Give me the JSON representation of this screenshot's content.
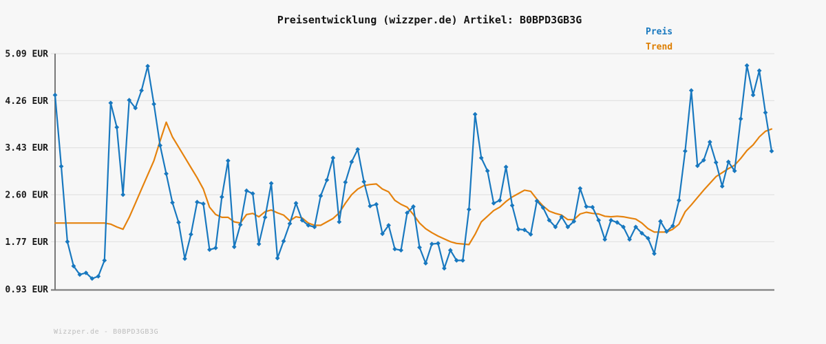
{
  "title": "Preisentwicklung (wizzper.de) Artikel: B0BPD3GB3G",
  "watermark": "Wizzper.de - B0BPD3GB3G",
  "legend": {
    "items": [
      {
        "label": "Preis",
        "color": "#1878bf"
      },
      {
        "label": "Trend",
        "color": "#dd7e00"
      }
    ]
  },
  "colors": {
    "background": "#f7f7f7",
    "grid": "#e3e3e3",
    "axis": "#787878",
    "price_line": "#1878bf",
    "trend_line": "#e5820d",
    "tick_text": "#1a1a1a",
    "watermark_text": "#bdbdbd"
  },
  "chart_data": {
    "type": "line",
    "title": "Preisentwicklung (wizzper.de) Artikel: B0BPD3GB3G",
    "xlabel": "",
    "ylabel": "EUR",
    "ylim": [
      0.93,
      5.09
    ],
    "grid": "horizontal",
    "legend_position": "top-right",
    "x_tick_labels": [],
    "yticks": [
      {
        "value": 5.09,
        "label": "5.09 EUR"
      },
      {
        "value": 4.26,
        "label": "4.26 EUR"
      },
      {
        "value": 3.43,
        "label": "3.43 EUR"
      },
      {
        "value": 2.6,
        "label": "2.60 EUR"
      },
      {
        "value": 1.77,
        "label": "1.77 EUR"
      },
      {
        "value": 0.93,
        "label": "0.93 EUR"
      }
    ],
    "series": [
      {
        "name": "Preis",
        "color": "#1878bf",
        "marker": "diamond",
        "values": [
          4.36,
          3.1,
          1.77,
          1.34,
          1.19,
          1.22,
          1.12,
          1.16,
          1.44,
          4.22,
          3.79,
          2.6,
          4.27,
          4.13,
          4.44,
          4.87,
          4.2,
          3.47,
          2.97,
          2.46,
          2.11,
          1.47,
          1.9,
          2.47,
          2.44,
          1.63,
          1.66,
          2.56,
          3.2,
          1.68,
          2.07,
          2.67,
          2.62,
          1.73,
          2.2,
          2.8,
          1.48,
          1.78,
          2.09,
          2.45,
          2.15,
          2.06,
          2.03,
          2.58,
          2.86,
          3.25,
          2.12,
          2.82,
          3.18,
          3.4,
          2.83,
          2.4,
          2.43,
          1.91,
          2.06,
          1.64,
          1.62,
          2.28,
          2.39,
          1.67,
          1.39,
          1.73,
          1.74,
          1.3,
          1.62,
          1.44,
          1.44,
          2.34,
          4.02,
          3.25,
          3.02,
          2.45,
          2.5,
          3.09,
          2.41,
          1.99,
          1.98,
          1.9,
          2.49,
          2.37,
          2.15,
          2.03,
          2.21,
          2.03,
          2.13,
          2.71,
          2.39,
          2.38,
          2.15,
          1.81,
          2.15,
          2.11,
          2.03,
          1.81,
          2.03,
          1.92,
          1.83,
          1.56,
          2.13,
          1.95,
          2.05,
          2.5,
          3.37,
          4.44,
          3.11,
          3.21,
          3.53,
          3.17,
          2.75,
          3.18,
          3.02,
          3.94,
          4.88,
          4.36,
          4.79,
          4.05,
          3.37
        ]
      },
      {
        "name": "Trend",
        "color": "#e5820d",
        "marker": "none",
        "values": [
          2.1,
          2.1,
          2.1,
          2.1,
          2.1,
          2.1,
          2.1,
          2.1,
          2.1,
          2.08,
          2.03,
          1.99,
          2.2,
          2.45,
          2.7,
          2.95,
          3.2,
          3.55,
          3.88,
          3.62,
          3.44,
          3.26,
          3.08,
          2.9,
          2.7,
          2.38,
          2.25,
          2.2,
          2.2,
          2.12,
          2.1,
          2.25,
          2.27,
          2.21,
          2.3,
          2.33,
          2.28,
          2.24,
          2.14,
          2.21,
          2.19,
          2.1,
          2.06,
          2.06,
          2.12,
          2.18,
          2.28,
          2.45,
          2.6,
          2.7,
          2.76,
          2.78,
          2.79,
          2.7,
          2.65,
          2.5,
          2.43,
          2.38,
          2.25,
          2.1,
          2.0,
          1.93,
          1.87,
          1.82,
          1.77,
          1.74,
          1.73,
          1.72,
          1.9,
          2.12,
          2.22,
          2.32,
          2.38,
          2.48,
          2.56,
          2.62,
          2.68,
          2.66,
          2.52,
          2.4,
          2.31,
          2.27,
          2.24,
          2.16,
          2.16,
          2.26,
          2.29,
          2.27,
          2.26,
          2.22,
          2.21,
          2.22,
          2.21,
          2.19,
          2.17,
          2.1,
          2.0,
          1.94,
          1.94,
          1.94,
          1.99,
          2.08,
          2.3,
          2.42,
          2.55,
          2.68,
          2.8,
          2.92,
          2.99,
          3.06,
          3.12,
          3.24,
          3.38,
          3.48,
          3.62,
          3.72,
          3.76
        ]
      }
    ]
  }
}
